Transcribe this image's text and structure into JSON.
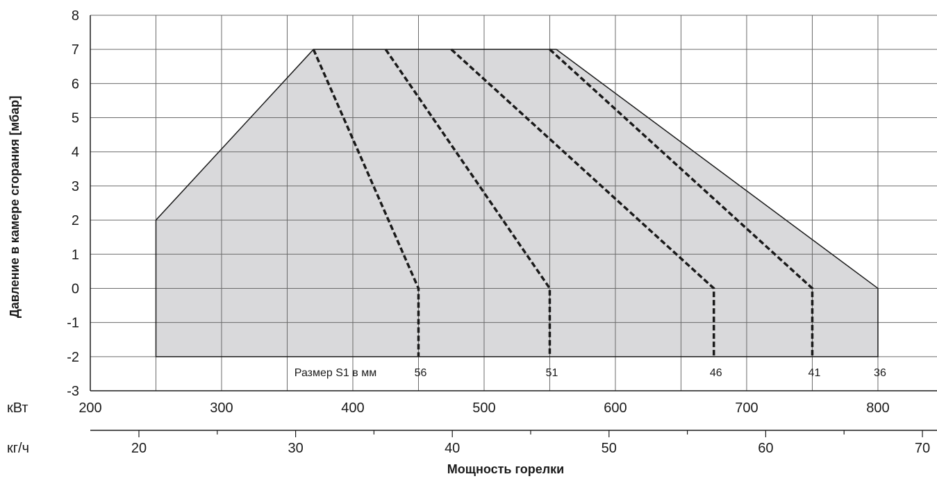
{
  "chart_data": {
    "type": "area",
    "ylabel": "Давление в камере сгорания [мбар]",
    "xlabel": "Мощность горелки",
    "ylim": [
      -3,
      8
    ],
    "y_ticks": [
      "8",
      "7",
      "6",
      "5",
      "4",
      "3",
      "2",
      "1",
      "0",
      "-1",
      "-2",
      "-3"
    ],
    "x_axes": [
      {
        "unit_label": "кВт",
        "range": [
          200,
          800
        ],
        "ticks": [
          "200",
          "300",
          "400",
          "500",
          "600",
          "700",
          "800"
        ]
      },
      {
        "unit_label": "кг/ч",
        "range": [
          17,
          70
        ],
        "ticks": [
          "20",
          "30",
          "40",
          "50",
          "60",
          "70"
        ]
      }
    ],
    "grid": true,
    "working_field": {
      "x_kw": [
        250,
        250,
        370,
        555,
        800,
        800
      ],
      "y_mbar": [
        -2,
        2,
        7,
        7,
        0,
        -2
      ],
      "fill_color": "#d9d9db"
    },
    "size_label_prefix": "Размер S1 в мм",
    "size_lines": [
      {
        "label": "56",
        "x_kw": [
          370,
          450,
          450
        ],
        "y_mbar": [
          7,
          0,
          -2
        ]
      },
      {
        "label": "51",
        "x_kw": [
          425,
          550,
          550
        ],
        "y_mbar": [
          7,
          0,
          -2
        ]
      },
      {
        "label": "46",
        "x_kw": [
          475,
          675,
          675
        ],
        "y_mbar": [
          7,
          0,
          -2
        ]
      },
      {
        "label": "41",
        "x_kw": [
          550,
          750,
          750
        ],
        "y_mbar": [
          7,
          0,
          -2
        ]
      },
      {
        "label": "36",
        "x_kw": [
          800,
          800
        ],
        "y_mbar": [
          0,
          -2
        ]
      }
    ]
  }
}
